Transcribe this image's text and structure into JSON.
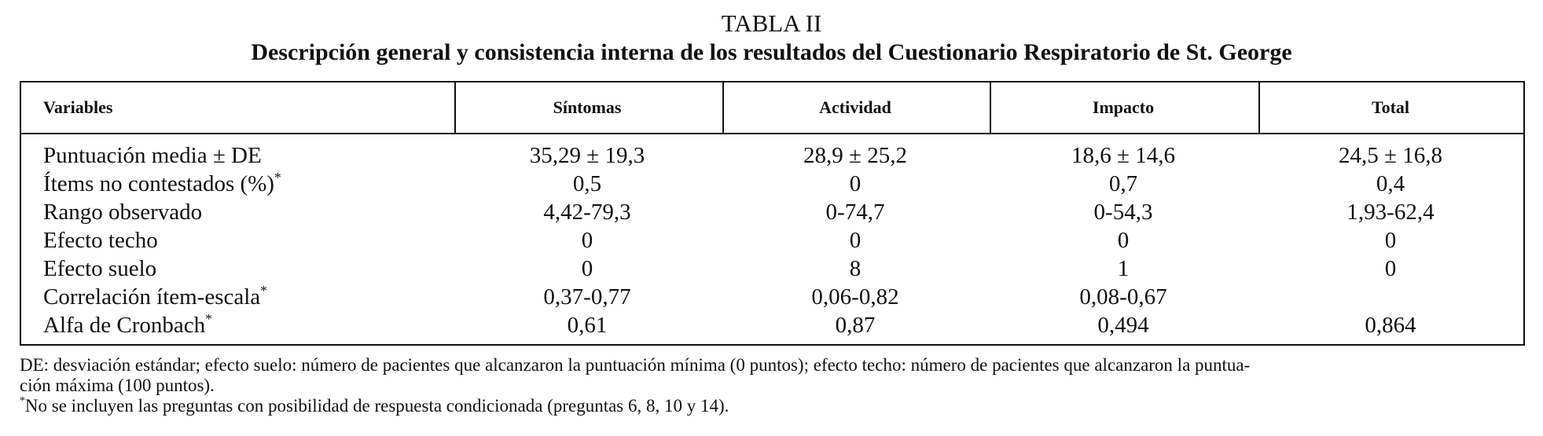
{
  "header": {
    "title": "TABLA II",
    "subtitle": "Descripción general y consistencia interna de los resultados del Cuestionario Respiratorio de St. George"
  },
  "table": {
    "columns": [
      "Variables",
      "Síntomas",
      "Actividad",
      "Impacto",
      "Total"
    ],
    "rows": [
      {
        "label": "Puntuación media ± DE",
        "mark": null,
        "cells": [
          "35,29 ± 19,3",
          "28,9 ± 25,2",
          "18,6 ± 14,6",
          "24,5 ± 16,8"
        ]
      },
      {
        "label": "Ítems no contestados (%)",
        "mark": "*",
        "cells": [
          "0,5",
          "0",
          "0,7",
          "0,4"
        ]
      },
      {
        "label": "Rango observado",
        "mark": null,
        "cells": [
          "4,42-79,3",
          "0-74,7",
          "0-54,3",
          "1,93-62,4"
        ]
      },
      {
        "label": "Efecto techo",
        "mark": null,
        "cells": [
          "0",
          "0",
          "0",
          "0"
        ]
      },
      {
        "label": "Efecto suelo",
        "mark": null,
        "cells": [
          "0",
          "8",
          "1",
          "0"
        ]
      },
      {
        "label": "Correlación ítem-escala",
        "mark": "*",
        "cells": [
          "0,37-0,77",
          "0,06-0,82",
          "0,08-0,67",
          null
        ]
      },
      {
        "label": "Alfa de Cronbach",
        "mark": "*",
        "cells": [
          "0,61",
          "0,87",
          "0,494",
          "0,864"
        ]
      }
    ]
  },
  "footnotes": {
    "lines": [
      "DE: desviación estándar; efecto suelo: número de pacientes que alcanzaron la puntuación mínima (0 puntos); efecto techo: número de pacientes que alcanzaron la puntua-",
      "ción máxima (100 puntos)."
    ],
    "note": {
      "mark": "*",
      "text": "No se incluyen las preguntas con posibilidad de respuesta condicionada (preguntas 6, 8, 10 y 14)."
    }
  }
}
